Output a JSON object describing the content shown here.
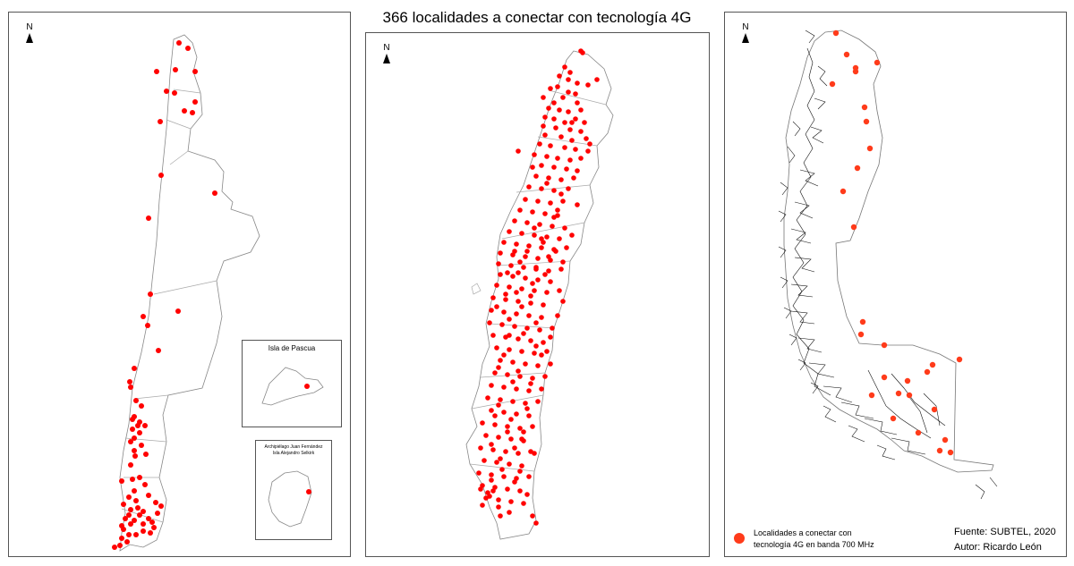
{
  "title": "366 localidades a conectar con tecnología 4G",
  "north_label": "N",
  "inset_pascua": {
    "title": "Isla de Pascua"
  },
  "inset_juan": {
    "line1": "Archipiélago Juan Fernández",
    "line2": "Isla Alejandro Selkirk"
  },
  "legend": {
    "line1": "Localidades a conectar con",
    "line2": "tecnología 4G en banda 700 MHz"
  },
  "credits": {
    "source": "Fuente: SUBTEL, 2020",
    "author": "Autor: Ricardo León"
  },
  "colors": {
    "dot_north": "#ff0000",
    "dot_south": "#ff3b1a",
    "outline": "#888888"
  },
  "map_panels": [
    {
      "name": "north",
      "points_count": 75
    },
    {
      "name": "center",
      "points_count": 262
    },
    {
      "name": "south",
      "points_count": 29
    }
  ]
}
